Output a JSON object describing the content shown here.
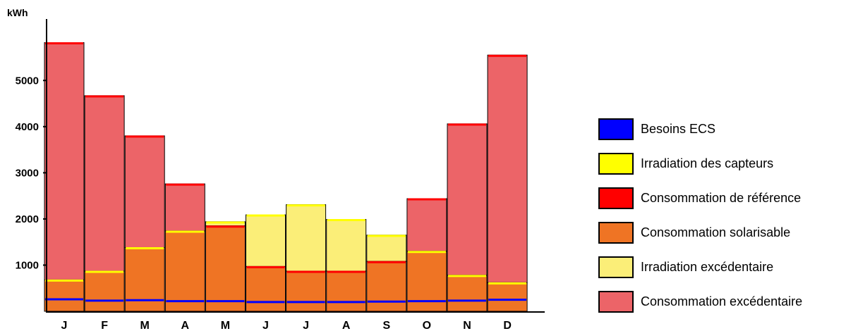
{
  "chart_data": {
    "type": "bar",
    "ylabel": "kWh",
    "ylim": [
      0,
      6300
    ],
    "yticks": [
      1000,
      2000,
      3000,
      4000,
      5000
    ],
    "ytick_labels": [
      "1000",
      "2000",
      "3000",
      "4000",
      "5000"
    ],
    "categories": [
      "J",
      "F",
      "M",
      "A",
      "M",
      "J",
      "J",
      "A",
      "S",
      "O",
      "N",
      "D"
    ],
    "series": [
      {
        "name": "Besoins ECS",
        "color": "#0000ff",
        "values": [
          260,
          230,
          240,
          220,
          220,
          200,
          200,
          200,
          210,
          220,
          230,
          250
        ]
      },
      {
        "name": "Irradiation des capteurs",
        "color": "#ffff00",
        "values": [
          680,
          870,
          1380,
          1740,
          1940,
          2090,
          2310,
          1990,
          1650,
          1300,
          780,
          620
        ]
      },
      {
        "name": "Consommation de référence",
        "color": "#ff0000",
        "values": [
          5820,
          4670,
          3800,
          2760,
          1850,
          970,
          870,
          870,
          1080,
          2440,
          4060,
          5550
        ]
      },
      {
        "name": "Consommation solarisable",
        "color": "#ef7424",
        "values": [
          680,
          870,
          1380,
          1740,
          1850,
          970,
          870,
          870,
          1080,
          1300,
          780,
          620
        ]
      },
      {
        "name": "Irradiation excédentaire",
        "color": "#fbee78",
        "values": [
          0,
          0,
          0,
          0,
          90,
          1120,
          1440,
          1120,
          570,
          0,
          0,
          0
        ]
      },
      {
        "name": "Consommation excédentaire",
        "color": "#ec6468",
        "values": [
          5140,
          3800,
          2420,
          1020,
          0,
          0,
          0,
          0,
          0,
          1140,
          3280,
          4930
        ]
      }
    ]
  }
}
